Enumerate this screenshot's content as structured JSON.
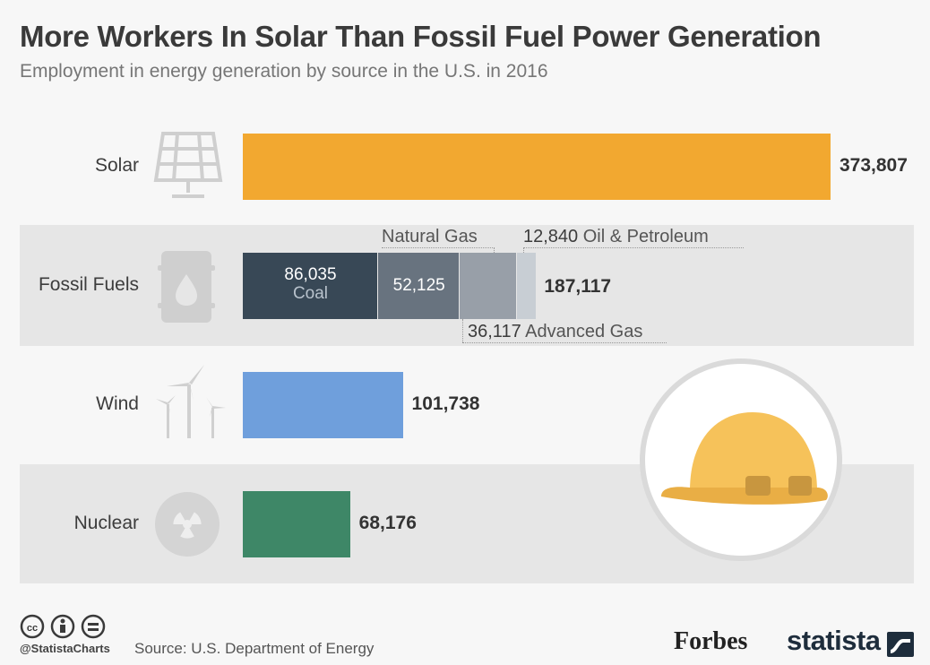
{
  "title": "More Workers In Solar Than Fossil Fuel Power Generation",
  "subtitle": "Employment in energy generation by source in the U.S. in 2016",
  "chart_data": {
    "type": "bar",
    "orientation": "horizontal",
    "categories": [
      "Solar",
      "Fossil Fuels",
      "Wind",
      "Nuclear"
    ],
    "totals": [
      "373,807",
      "187,117",
      "101,738",
      "68,176"
    ],
    "values": [
      373807,
      187117,
      101738,
      68176
    ],
    "fossil_breakdown": [
      {
        "name": "Coal",
        "value": 86035,
        "label": "86,035",
        "color": "#384856"
      },
      {
        "name": "Natural Gas",
        "value": 52125,
        "label": "52,125",
        "color": "#68737f"
      },
      {
        "name": "Advanced Gas",
        "value": 36117,
        "label": "36,117",
        "color": "#989fa8"
      },
      {
        "name": "Oil & Petroleum",
        "value": 12840,
        "label": "12,840",
        "color": "#c8ced4"
      }
    ],
    "colors": {
      "Solar": "#f2a830",
      "Wind": "#6f9fdc",
      "Nuclear": "#3e8767"
    },
    "xlim": [
      0,
      373807
    ],
    "grid": false,
    "legend": "none"
  },
  "footer": {
    "handle": "@StatistaCharts",
    "source": "Source: U.S. Department of Energy",
    "forbes": "Forbes",
    "statista": "statista"
  },
  "icons": [
    "solar-panel-icon",
    "oil-barrel-icon",
    "wind-turbine-icon",
    "radiation-icon",
    "hard-hat-icon",
    "cc-icon",
    "attribution-icon",
    "no-derivatives-icon",
    "statista-logo-icon"
  ]
}
